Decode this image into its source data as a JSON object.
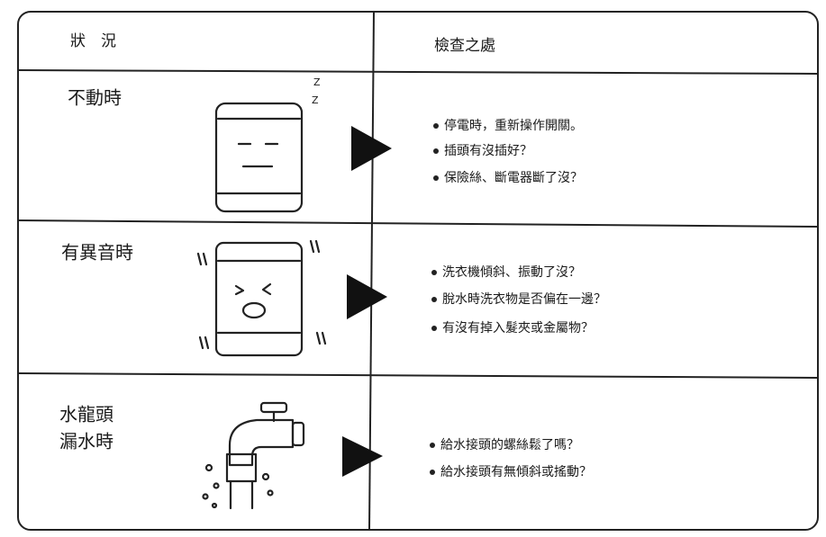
{
  "header": {
    "condition": "狀　況",
    "check": "檢查之處"
  },
  "rows": [
    {
      "label": [
        "不動時"
      ],
      "checks": [
        "停電時，重新操作開關。",
        "插頭有沒插好？",
        "保險絲、斷電器斷了沒？"
      ]
    },
    {
      "label": [
        "有異音時"
      ],
      "checks": [
        "洗衣機傾斜、振動了沒？",
        "脫水時洗衣物是否偏在一邊？",
        "有沒有掉入髮夾或金屬物？"
      ]
    },
    {
      "label": [
        "水龍頭",
        "漏水時"
      ],
      "checks": [
        "給水接頭的螺絲鬆了嗎？",
        "給水接頭有無傾斜或搖動？"
      ]
    }
  ]
}
